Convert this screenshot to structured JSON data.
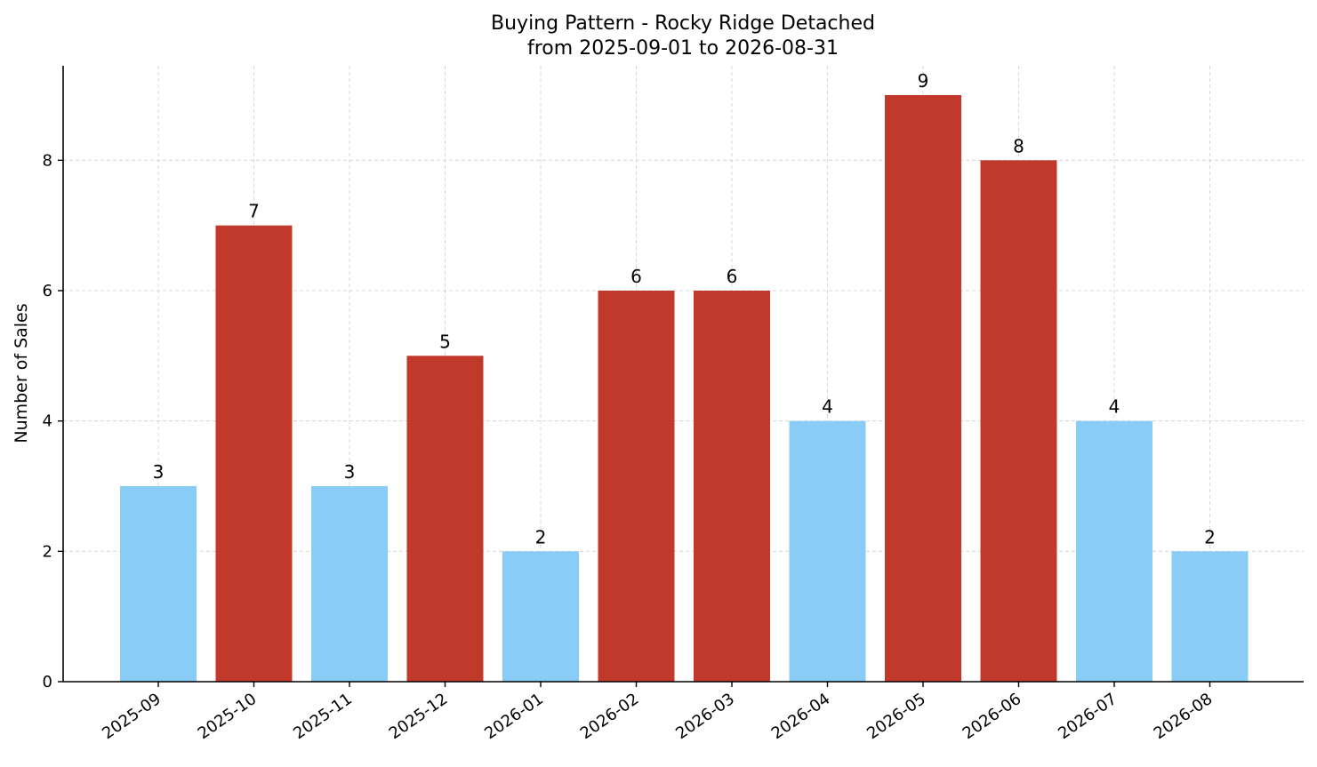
{
  "chart_data": {
    "type": "bar",
    "title": "Buying Pattern - Rocky Ridge Detached",
    "subtitle": "from 2025-09-01 to 2026-08-31",
    "xlabel": "",
    "ylabel": "Number of Sales",
    "categories": [
      "2025-09",
      "2025-10",
      "2025-11",
      "2025-12",
      "2026-01",
      "2026-02",
      "2026-03",
      "2026-04",
      "2026-05",
      "2026-06",
      "2026-07",
      "2026-08"
    ],
    "values": [
      3,
      7,
      3,
      5,
      2,
      6,
      6,
      4,
      9,
      8,
      4,
      2
    ],
    "data_labels": [
      "3",
      "7",
      "3",
      "5",
      "2",
      "6",
      "6",
      "4",
      "9",
      "8",
      "4",
      "2"
    ],
    "bar_colors": [
      "#89cdf7",
      "#c0392b",
      "#89cdf7",
      "#c0392b",
      "#89cdf7",
      "#c0392b",
      "#c0392b",
      "#89cdf7",
      "#c0392b",
      "#c0392b",
      "#89cdf7",
      "#89cdf7"
    ],
    "colors": {
      "low": "#89cdf7",
      "high": "#c0392b"
    },
    "ylim": [
      0,
      9.45
    ],
    "yticks": [
      0,
      2,
      4,
      6,
      8
    ],
    "ytick_labels": [
      "0",
      "2",
      "4",
      "6",
      "8"
    ],
    "grid": true,
    "legend": "none"
  }
}
